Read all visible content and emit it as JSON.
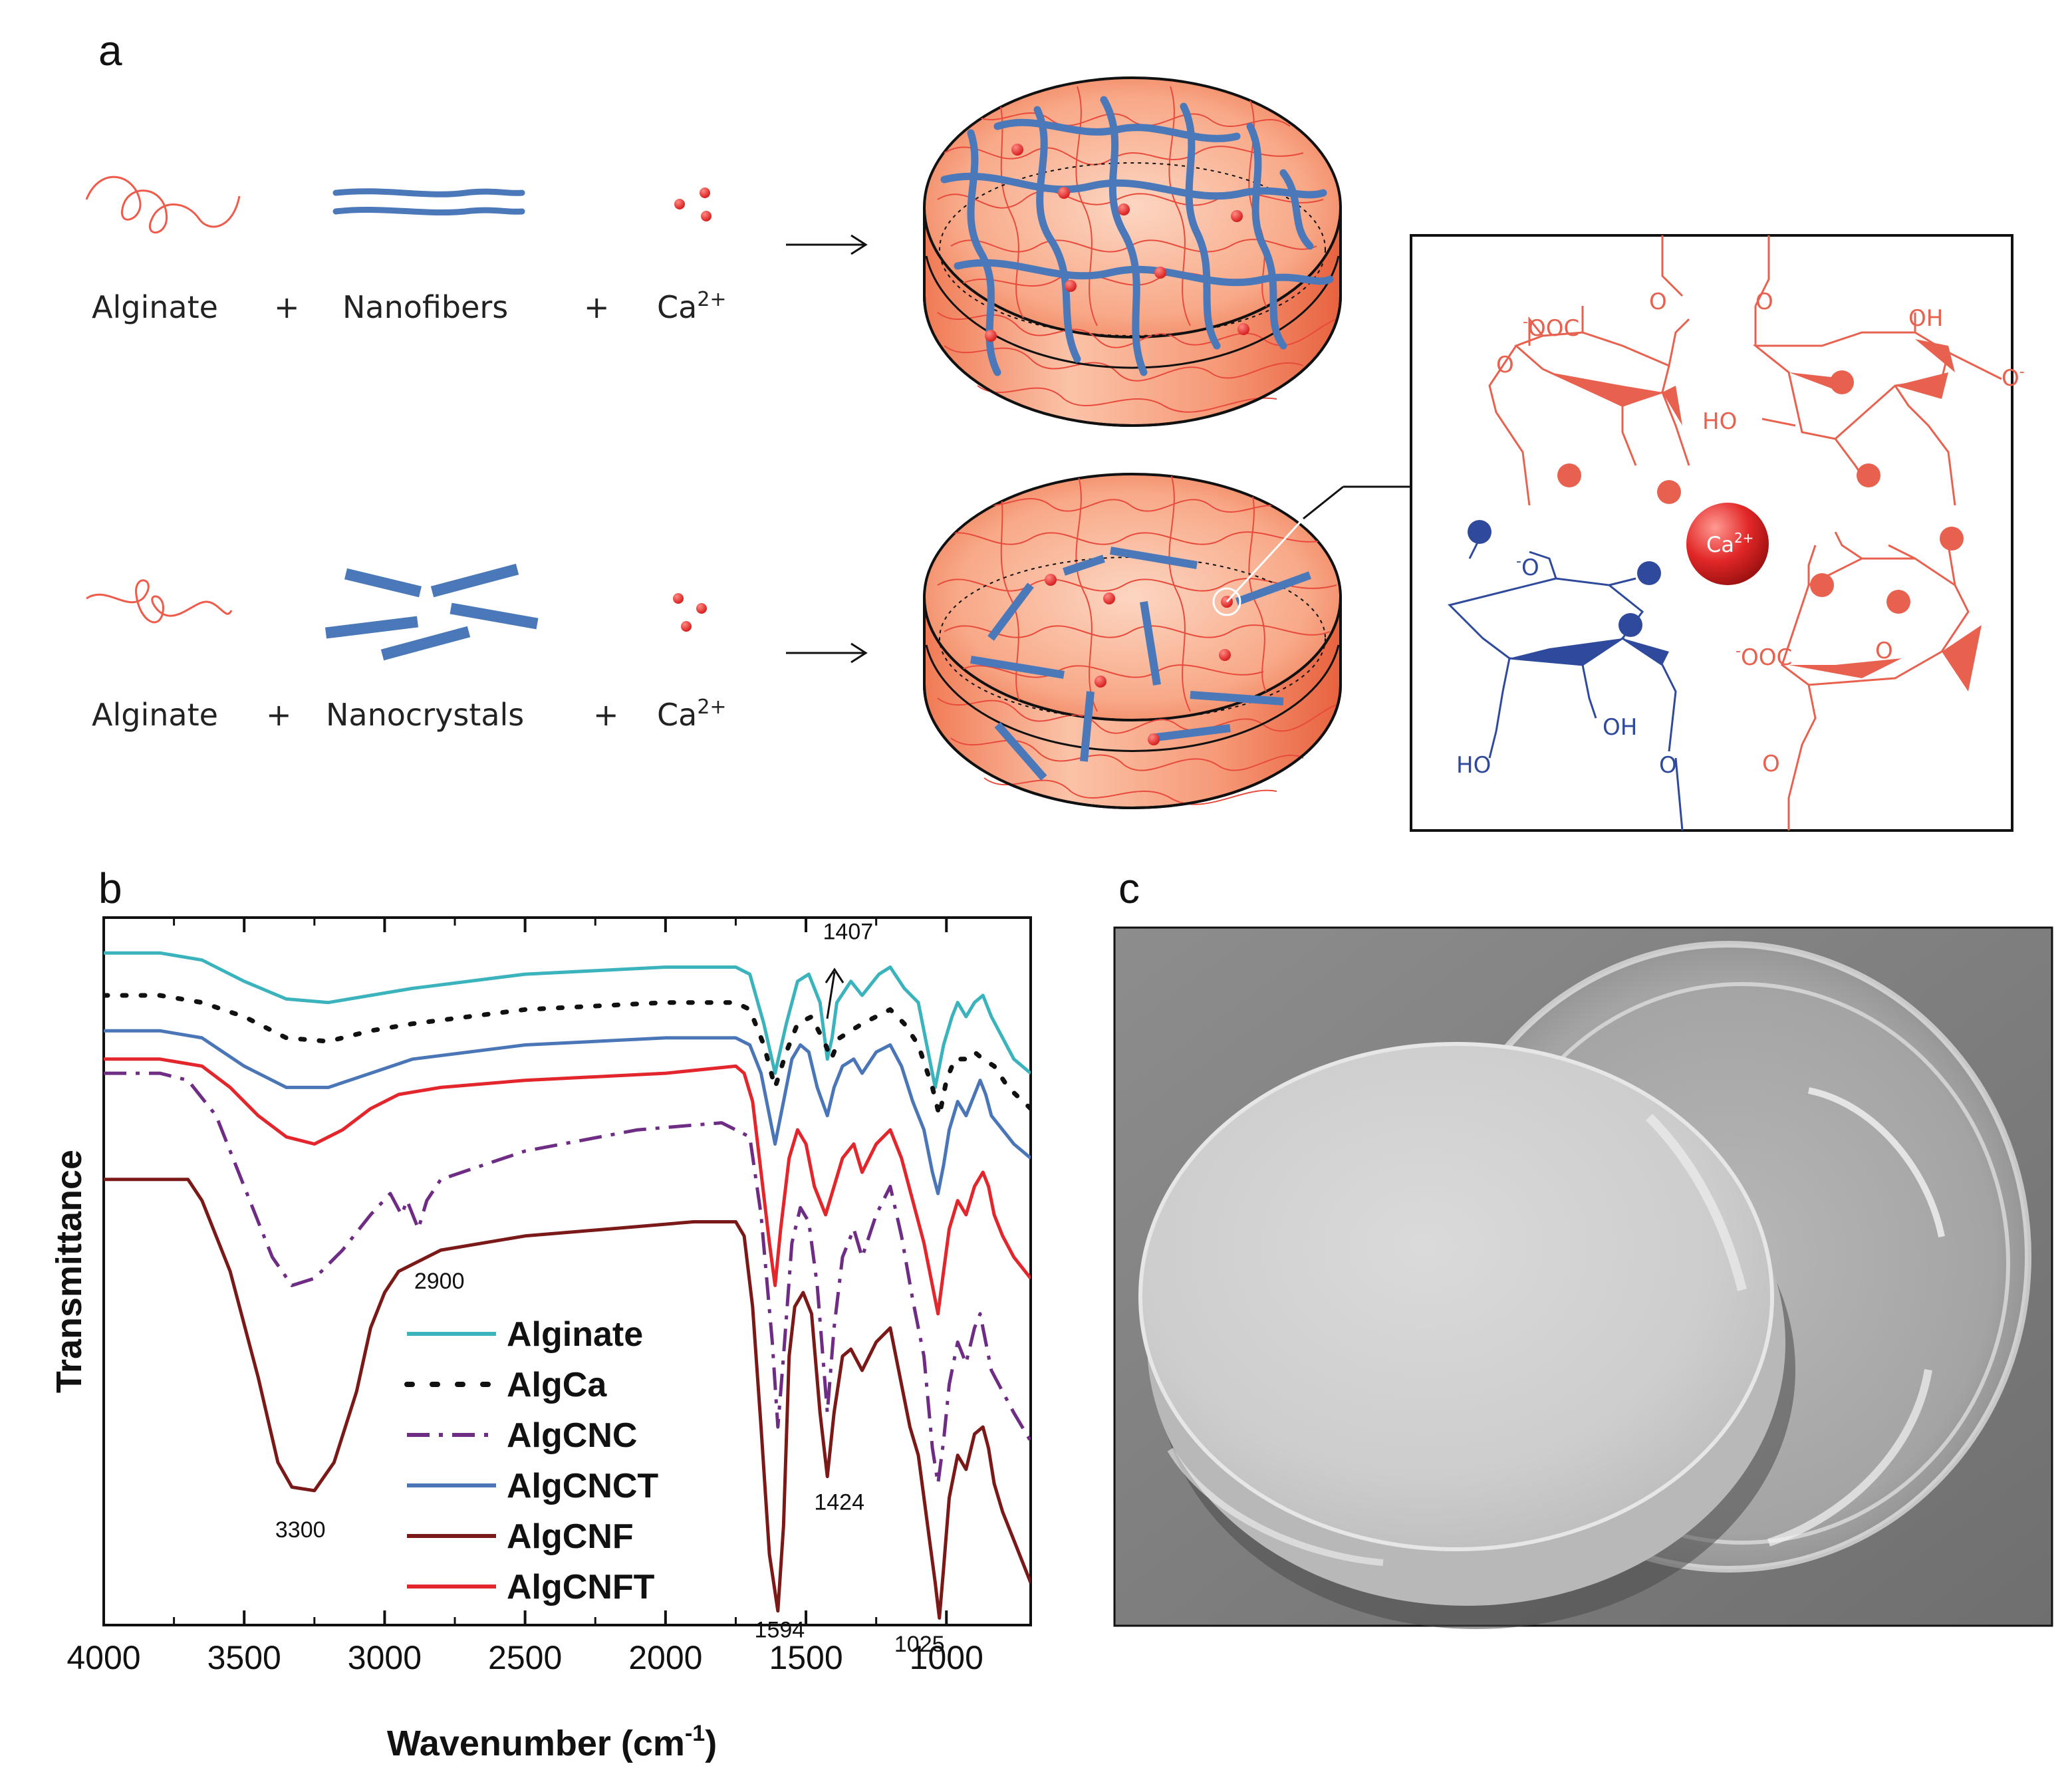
{
  "panel_a": {
    "letter": "a",
    "row1": {
      "c1": "Alginate",
      "op1": "+",
      "c2": "Nanofibers",
      "op2": "+",
      "c3": "Ca",
      "c3_sup": "2+"
    },
    "row2": {
      "c1": "Alginate",
      "op1": "+",
      "c2": "Nanocrystals",
      "op2": "+",
      "c3": "Ca",
      "c3_sup": "2+"
    },
    "inset": {
      "ooc_top": "OOC",
      "ooc_bottom": "OOC",
      "oh_top": "OH",
      "ho_right": "HO",
      "ho_bottom": "HO",
      "oh_bottom": "OH",
      "ion": "Ca",
      "ion_sup": "2+"
    }
  },
  "panel_b": {
    "letter": "b"
  },
  "panel_c": {
    "letter": "c"
  },
  "chart_data": {
    "type": "line",
    "xlabel": "Wavenumber (cm",
    "xlabel_sup": "-1",
    "xlabel_end": ")",
    "ylabel": "Transmittance",
    "x_ticks": [
      4000,
      3500,
      3000,
      2500,
      2000,
      1500,
      1000
    ],
    "xlim": [
      4000,
      700
    ],
    "ylim": [
      0,
      100
    ],
    "legend_position": "center",
    "annotations": [
      {
        "text": "1407",
        "x": 1407,
        "y": 96
      },
      {
        "text": "2900",
        "x": 2900,
        "y": 53
      },
      {
        "text": "3300",
        "x": 3300,
        "y": 19
      },
      {
        "text": "1424",
        "x": 1424,
        "y": 21
      },
      {
        "text": "1594",
        "x": 1594,
        "y": 2
      },
      {
        "text": "1025",
        "x": 1025,
        "y": 0
      }
    ],
    "series": [
      {
        "name": "Alginate",
        "color": "#3bb3bd",
        "dash": "solid",
        "points": [
          [
            4000,
            95
          ],
          [
            3800,
            95
          ],
          [
            3650,
            94
          ],
          [
            3500,
            91
          ],
          [
            3350,
            88.5
          ],
          [
            3200,
            88
          ],
          [
            3050,
            89
          ],
          [
            2900,
            90
          ],
          [
            2500,
            92
          ],
          [
            2000,
            93
          ],
          [
            1750,
            93
          ],
          [
            1700,
            92
          ],
          [
            1650,
            85
          ],
          [
            1610,
            78
          ],
          [
            1570,
            85
          ],
          [
            1530,
            91
          ],
          [
            1490,
            92
          ],
          [
            1450,
            88
          ],
          [
            1424,
            80
          ],
          [
            1407,
            83
          ],
          [
            1390,
            88
          ],
          [
            1340,
            91
          ],
          [
            1300,
            89
          ],
          [
            1240,
            92
          ],
          [
            1200,
            93
          ],
          [
            1150,
            90
          ],
          [
            1100,
            88
          ],
          [
            1070,
            82
          ],
          [
            1040,
            76
          ],
          [
            1010,
            82
          ],
          [
            980,
            86
          ],
          [
            960,
            88
          ],
          [
            930,
            86
          ],
          [
            900,
            88
          ],
          [
            870,
            89
          ],
          [
            840,
            86
          ],
          [
            800,
            83
          ],
          [
            760,
            80
          ],
          [
            700,
            78
          ]
        ]
      },
      {
        "name": "AlgCa",
        "color": "#111111",
        "dash": "dotted",
        "points": [
          [
            4000,
            89
          ],
          [
            3800,
            89
          ],
          [
            3650,
            88
          ],
          [
            3500,
            86
          ],
          [
            3350,
            83
          ],
          [
            3200,
            82.5
          ],
          [
            3050,
            84
          ],
          [
            2900,
            85
          ],
          [
            2500,
            87
          ],
          [
            2000,
            88
          ],
          [
            1750,
            88
          ],
          [
            1700,
            87
          ],
          [
            1650,
            82
          ],
          [
            1610,
            76
          ],
          [
            1570,
            81
          ],
          [
            1530,
            85
          ],
          [
            1480,
            86
          ],
          [
            1430,
            82
          ],
          [
            1410,
            80
          ],
          [
            1380,
            83
          ],
          [
            1300,
            85
          ],
          [
            1200,
            87
          ],
          [
            1150,
            85
          ],
          [
            1100,
            82
          ],
          [
            1050,
            76
          ],
          [
            1025,
            72
          ],
          [
            1000,
            77
          ],
          [
            970,
            80
          ],
          [
            930,
            80
          ],
          [
            900,
            81
          ],
          [
            870,
            80
          ],
          [
            830,
            79
          ],
          [
            780,
            76
          ],
          [
            700,
            73
          ]
        ]
      },
      {
        "name": "AlgCNC",
        "color": "#6e2c85",
        "dash": "dashdot",
        "points": [
          [
            4000,
            78
          ],
          [
            3800,
            78
          ],
          [
            3700,
            77
          ],
          [
            3600,
            72
          ],
          [
            3500,
            62
          ],
          [
            3400,
            52
          ],
          [
            3330,
            48
          ],
          [
            3250,
            49
          ],
          [
            3150,
            53
          ],
          [
            3050,
            58
          ],
          [
            2980,
            61
          ],
          [
            2940,
            58
          ],
          [
            2920,
            60
          ],
          [
            2880,
            56
          ],
          [
            2850,
            60
          ],
          [
            2800,
            63
          ],
          [
            2500,
            67
          ],
          [
            2100,
            70
          ],
          [
            1800,
            71
          ],
          [
            1700,
            69
          ],
          [
            1660,
            58
          ],
          [
            1620,
            40
          ],
          [
            1600,
            28
          ],
          [
            1580,
            38
          ],
          [
            1550,
            54
          ],
          [
            1520,
            59
          ],
          [
            1490,
            57
          ],
          [
            1460,
            48
          ],
          [
            1424,
            30
          ],
          [
            1400,
            42
          ],
          [
            1370,
            52
          ],
          [
            1330,
            56
          ],
          [
            1300,
            52
          ],
          [
            1250,
            58
          ],
          [
            1200,
            62
          ],
          [
            1160,
            55
          ],
          [
            1120,
            46
          ],
          [
            1080,
            38
          ],
          [
            1050,
            25
          ],
          [
            1030,
            20
          ],
          [
            1010,
            26
          ],
          [
            990,
            34
          ],
          [
            960,
            40
          ],
          [
            930,
            37
          ],
          [
            900,
            42
          ],
          [
            880,
            44
          ],
          [
            860,
            40
          ],
          [
            840,
            36
          ],
          [
            800,
            33
          ],
          [
            760,
            30
          ],
          [
            700,
            26
          ]
        ]
      },
      {
        "name": "AlgCNCT",
        "color": "#4a76b8",
        "dash": "solid",
        "points": [
          [
            4000,
            84
          ],
          [
            3800,
            84
          ],
          [
            3650,
            83
          ],
          [
            3500,
            79
          ],
          [
            3350,
            76
          ],
          [
            3200,
            76
          ],
          [
            3050,
            78
          ],
          [
            2900,
            80
          ],
          [
            2500,
            82
          ],
          [
            2000,
            83
          ],
          [
            1750,
            83
          ],
          [
            1700,
            82
          ],
          [
            1660,
            78
          ],
          [
            1610,
            68
          ],
          [
            1580,
            74
          ],
          [
            1550,
            80
          ],
          [
            1520,
            82
          ],
          [
            1490,
            81
          ],
          [
            1460,
            76
          ],
          [
            1424,
            72
          ],
          [
            1400,
            76
          ],
          [
            1370,
            79
          ],
          [
            1330,
            80
          ],
          [
            1300,
            78
          ],
          [
            1250,
            81
          ],
          [
            1200,
            82
          ],
          [
            1160,
            79
          ],
          [
            1120,
            74
          ],
          [
            1080,
            70
          ],
          [
            1050,
            64
          ],
          [
            1030,
            61
          ],
          [
            1010,
            65
          ],
          [
            990,
            70
          ],
          [
            960,
            74
          ],
          [
            930,
            72
          ],
          [
            900,
            75
          ],
          [
            880,
            77
          ],
          [
            860,
            75
          ],
          [
            840,
            72
          ],
          [
            800,
            70
          ],
          [
            760,
            68
          ],
          [
            700,
            66
          ]
        ]
      },
      {
        "name": "AlgCNF",
        "color": "#7b1818",
        "dash": "solid",
        "points": [
          [
            4000,
            63
          ],
          [
            3800,
            63
          ],
          [
            3700,
            63
          ],
          [
            3650,
            60
          ],
          [
            3550,
            50
          ],
          [
            3450,
            35
          ],
          [
            3380,
            23
          ],
          [
            3330,
            19.5
          ],
          [
            3250,
            19
          ],
          [
            3180,
            23
          ],
          [
            3100,
            33
          ],
          [
            3050,
            42
          ],
          [
            3000,
            47
          ],
          [
            2950,
            50
          ],
          [
            2900,
            51
          ],
          [
            2800,
            53
          ],
          [
            2500,
            55
          ],
          [
            2200,
            56
          ],
          [
            1900,
            57
          ],
          [
            1750,
            57
          ],
          [
            1720,
            55
          ],
          [
            1690,
            45
          ],
          [
            1660,
            28
          ],
          [
            1630,
            10
          ],
          [
            1600,
            2
          ],
          [
            1580,
            14
          ],
          [
            1560,
            38
          ],
          [
            1540,
            45
          ],
          [
            1510,
            47
          ],
          [
            1480,
            44
          ],
          [
            1450,
            30
          ],
          [
            1424,
            21
          ],
          [
            1400,
            30
          ],
          [
            1370,
            38
          ],
          [
            1340,
            39
          ],
          [
            1300,
            36
          ],
          [
            1250,
            40
          ],
          [
            1200,
            42
          ],
          [
            1170,
            36
          ],
          [
            1130,
            28
          ],
          [
            1100,
            24
          ],
          [
            1080,
            18
          ],
          [
            1060,
            12
          ],
          [
            1040,
            6
          ],
          [
            1025,
            1
          ],
          [
            1010,
            8
          ],
          [
            990,
            18
          ],
          [
            960,
            24
          ],
          [
            930,
            22
          ],
          [
            900,
            27
          ],
          [
            870,
            28
          ],
          [
            850,
            25
          ],
          [
            830,
            20
          ],
          [
            800,
            16
          ],
          [
            760,
            12
          ],
          [
            700,
            6
          ]
        ]
      },
      {
        "name": "AlgCNFT",
        "color": "#e3262b",
        "dash": "solid",
        "points": [
          [
            4000,
            80
          ],
          [
            3800,
            80
          ],
          [
            3650,
            79
          ],
          [
            3550,
            76
          ],
          [
            3450,
            72
          ],
          [
            3350,
            69
          ],
          [
            3250,
            68
          ],
          [
            3150,
            70
          ],
          [
            3050,
            73
          ],
          [
            2950,
            75
          ],
          [
            2800,
            76
          ],
          [
            2500,
            77
          ],
          [
            2000,
            78
          ],
          [
            1750,
            79
          ],
          [
            1720,
            78
          ],
          [
            1690,
            74
          ],
          [
            1660,
            64
          ],
          [
            1630,
            54
          ],
          [
            1610,
            48
          ],
          [
            1590,
            56
          ],
          [
            1560,
            66
          ],
          [
            1530,
            70
          ],
          [
            1500,
            68
          ],
          [
            1470,
            62
          ],
          [
            1430,
            58
          ],
          [
            1400,
            62
          ],
          [
            1370,
            66
          ],
          [
            1330,
            68
          ],
          [
            1300,
            64
          ],
          [
            1250,
            68
          ],
          [
            1200,
            70
          ],
          [
            1160,
            66
          ],
          [
            1120,
            60
          ],
          [
            1080,
            54
          ],
          [
            1050,
            48
          ],
          [
            1030,
            44
          ],
          [
            1010,
            50
          ],
          [
            990,
            56
          ],
          [
            960,
            60
          ],
          [
            930,
            58
          ],
          [
            900,
            62
          ],
          [
            870,
            64
          ],
          [
            850,
            62
          ],
          [
            830,
            58
          ],
          [
            800,
            55
          ],
          [
            760,
            52
          ],
          [
            700,
            49
          ]
        ]
      }
    ]
  }
}
